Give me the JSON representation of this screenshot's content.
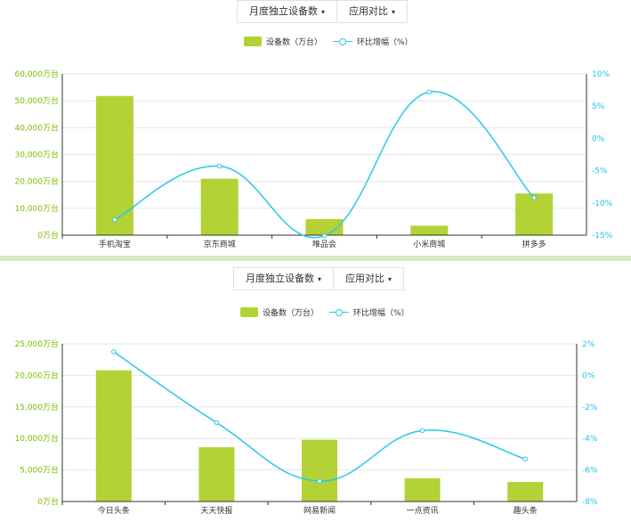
{
  "panels": [
    {
      "buttons": [
        {
          "label": "月度独立设备数",
          "caret": "▾"
        },
        {
          "label": "应用对比",
          "caret": "▾"
        }
      ],
      "legend": {
        "bar": "设备数（万台）",
        "line": "环比增幅（%）"
      }
    },
    {
      "buttons": [
        {
          "label": "月度独立设备数",
          "caret": "▾"
        },
        {
          "label": "应用对比",
          "caret": "▾"
        }
      ],
      "legend": {
        "bar": "设备数（万台）",
        "line": "环比增幅（%）"
      }
    }
  ],
  "colors": {
    "bar": "#b2d235",
    "line": "#28c8ea",
    "left_axis": "#7cbb00",
    "right_axis": "#24c3ea",
    "grid": "#e6e6e6",
    "axis": "#333333"
  },
  "chart_data": [
    {
      "type": "bar",
      "categories": [
        "手机淘宝",
        "京东商城",
        "唯品会",
        "小米商城",
        "拼多多"
      ],
      "series": [
        {
          "name": "设备数（万台）",
          "type": "bar",
          "axis": "left",
          "values": [
            51800,
            21000,
            6000,
            3500,
            15500
          ]
        },
        {
          "name": "环比增幅（%）",
          "type": "line",
          "axis": "right",
          "values": [
            -12.6,
            -4.3,
            -15.1,
            7.2,
            -9.2
          ]
        }
      ],
      "y_left": {
        "ylim": [
          0,
          60000
        ],
        "ticks": [
          0,
          10000,
          20000,
          30000,
          40000,
          50000,
          60000
        ],
        "tick_labels": [
          "0万台",
          "10,000万台",
          "20,000万台",
          "30,000万台",
          "40,000万台",
          "50,000万台",
          "60,000万台"
        ]
      },
      "y_right": {
        "ylim": [
          -15,
          10
        ],
        "ticks": [
          -15,
          -10,
          -5,
          0,
          5,
          10
        ],
        "tick_labels": [
          "-15%",
          "-10%",
          "-5%",
          "0%",
          "5%",
          "10%"
        ]
      },
      "grid": true,
      "legend_position": "top-center"
    },
    {
      "type": "bar",
      "categories": [
        "今日头条",
        "天天快报",
        "网易新闻",
        "一点资讯",
        "趣头条"
      ],
      "series": [
        {
          "name": "设备数（万台）",
          "type": "bar",
          "axis": "left",
          "values": [
            20800,
            8600,
            9800,
            3700,
            3100
          ]
        },
        {
          "name": "环比增幅（%）",
          "type": "line",
          "axis": "right",
          "values": [
            1.5,
            -3.0,
            -6.7,
            -3.5,
            -5.3
          ]
        }
      ],
      "y_left": {
        "ylim": [
          0,
          25000
        ],
        "ticks": [
          0,
          5000,
          10000,
          15000,
          20000,
          25000
        ],
        "tick_labels": [
          "0万台",
          "5,000万台",
          "10,000万台",
          "15,000万台",
          "20,000万台",
          "25,000万台"
        ]
      },
      "y_right": {
        "ylim": [
          -8,
          2
        ],
        "ticks": [
          -8,
          -6,
          -4,
          -2,
          0,
          2
        ],
        "tick_labels": [
          "-8%",
          "-6%",
          "-4%",
          "-2%",
          "0%",
          "2%"
        ]
      },
      "grid": true,
      "legend_position": "top-center"
    }
  ]
}
